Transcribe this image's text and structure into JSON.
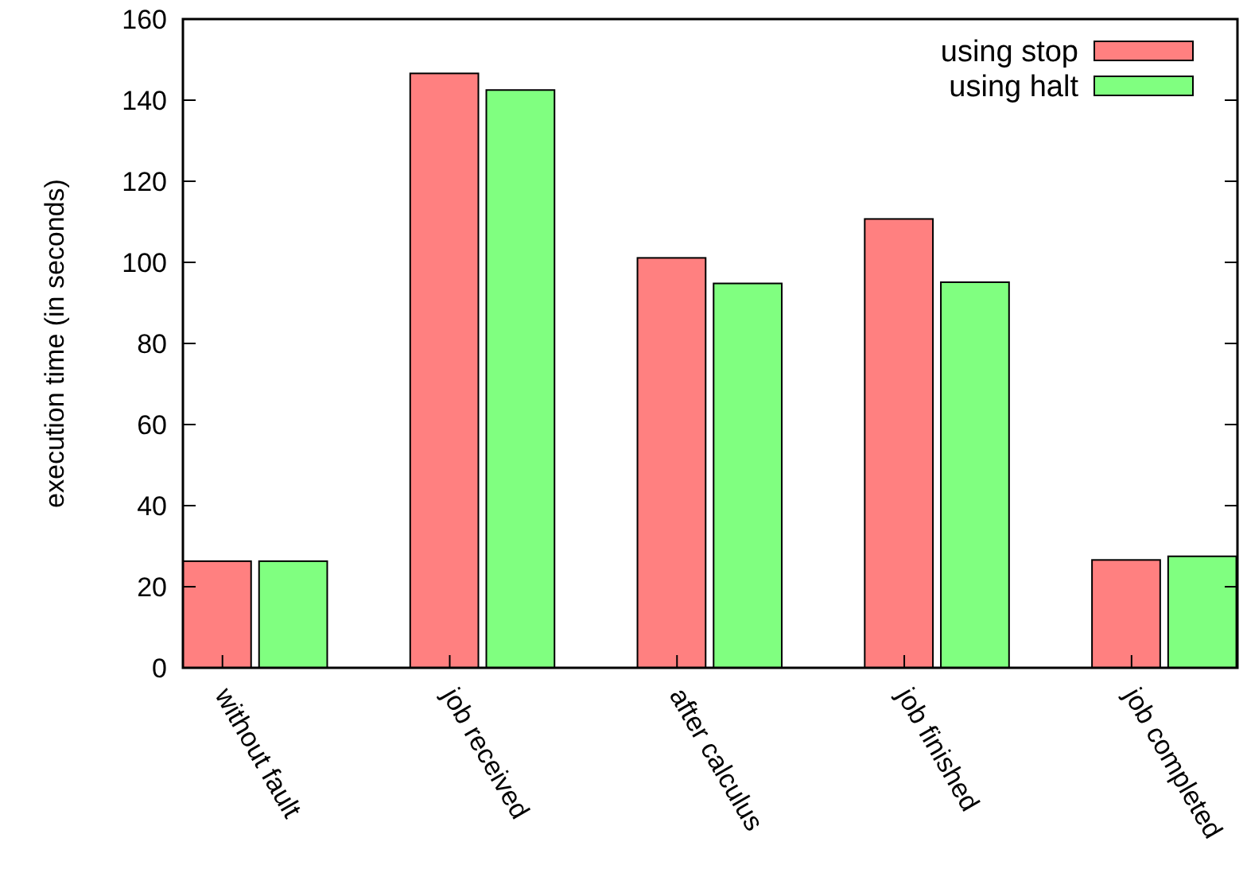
{
  "chart_data": {
    "type": "bar",
    "ylabel": "execution time (in seconds)",
    "categories": [
      "without fault",
      "job received",
      "after calculus",
      "job finished",
      "job completed"
    ],
    "series": [
      {
        "name": "using stop",
        "color": "#ff8080",
        "values": [
          26.3,
          146.6,
          101.1,
          110.7,
          26.6
        ]
      },
      {
        "name": "using halt",
        "color": "#80ff80",
        "values": [
          26.3,
          142.5,
          94.8,
          95.1,
          27.5
        ]
      }
    ],
    "ylim": [
      0,
      160
    ],
    "yticks": [
      0,
      20,
      40,
      60,
      80,
      100,
      120,
      140,
      160
    ],
    "grid": false,
    "legend": "top right"
  }
}
